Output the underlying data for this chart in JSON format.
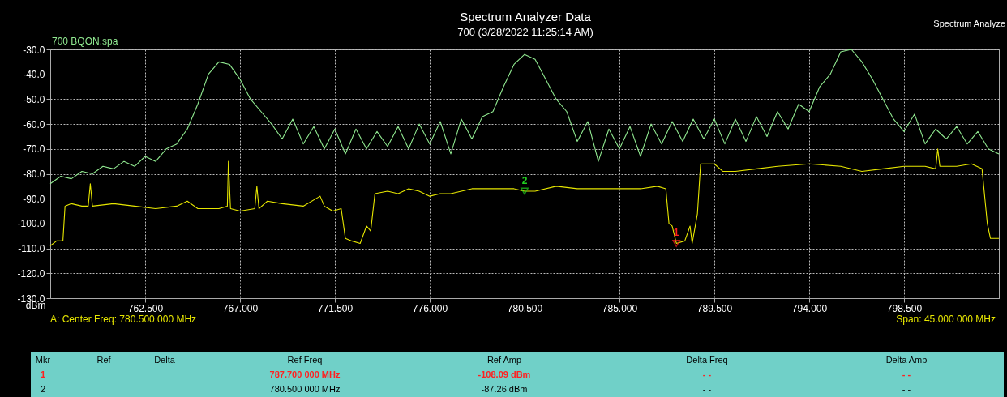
{
  "chart_data": {
    "type": "line",
    "title": "Spectrum Analyzer Data",
    "subtitle": "700 (3/28/2022 11:25:14 AM)",
    "ylabel": "dBm",
    "xlim": [
      758,
      803
    ],
    "ylim": [
      -130,
      -30
    ],
    "xticks": [
      {
        "value": 762.5,
        "label": "762.500"
      },
      {
        "value": 767,
        "label": "767.000"
      },
      {
        "value": 771.5,
        "label": "771.500"
      },
      {
        "value": 776,
        "label": "776.000"
      },
      {
        "value": 780.5,
        "label": "780.500"
      },
      {
        "value": 785,
        "label": "785.000"
      },
      {
        "value": 789.5,
        "label": "789.500"
      },
      {
        "value": 794,
        "label": "794.000"
      },
      {
        "value": 798.5,
        "label": "798.500"
      }
    ],
    "yticks": [
      {
        "value": -30,
        "label": "-30.0"
      },
      {
        "value": -40,
        "label": "-40.0"
      },
      {
        "value": -50,
        "label": "-50.0"
      },
      {
        "value": -60,
        "label": "-60.0"
      },
      {
        "value": -70,
        "label": "-70.0"
      },
      {
        "value": -80,
        "label": "-80.0"
      },
      {
        "value": -90,
        "label": "-90.0"
      },
      {
        "value": -100,
        "label": "-100.0"
      },
      {
        "value": -110,
        "label": "-110.0"
      },
      {
        "value": -120,
        "label": "-120.0"
      },
      {
        "value": -130,
        "label": "-130.0"
      }
    ],
    "grid": true,
    "legend": "top left",
    "line_style": "solid",
    "series": [
      {
        "name": "700 BQON.spa",
        "color": "#90e890",
        "x": [
          758,
          758.5,
          759,
          759.5,
          760,
          760.5,
          761,
          761.5,
          762,
          762.5,
          763,
          763.5,
          764,
          764.5,
          765,
          765.5,
          766,
          766.5,
          767,
          767.5,
          768,
          768.5,
          769,
          769.5,
          770,
          770.5,
          771,
          771.5,
          772,
          772.5,
          773,
          773.5,
          774,
          774.5,
          775,
          775.5,
          776,
          776.5,
          777,
          777.5,
          778,
          778.5,
          779,
          779.5,
          780,
          780.5,
          781,
          781.5,
          782,
          782.5,
          783,
          783.5,
          784,
          784.5,
          785,
          785.5,
          786,
          786.5,
          787,
          787.5,
          788,
          788.5,
          789,
          789.5,
          790,
          790.5,
          791,
          791.5,
          792,
          792.5,
          793,
          793.5,
          794,
          794.5,
          795,
          795.5,
          796,
          796.5,
          797,
          797.5,
          798,
          798.5,
          799,
          799.5,
          800,
          800.5,
          801,
          801.5,
          802,
          802.5,
          803
        ],
        "values": [
          -84,
          -81,
          -82,
          -79,
          -80,
          -77,
          -78,
          -75,
          -77,
          -73,
          -75,
          -70,
          -68,
          -62,
          -52,
          -40,
          -35,
          -36,
          -42,
          -50,
          -55,
          -60,
          -66,
          -58,
          -68,
          -61,
          -70,
          -62,
          -72,
          -62,
          -70,
          -63,
          -69,
          -61,
          -70,
          -60,
          -68,
          -59,
          -72,
          -58,
          -66,
          -57,
          -55,
          -45,
          -36,
          -32,
          -34,
          -42,
          -50,
          -55,
          -67,
          -59,
          -75,
          -62,
          -70,
          -61,
          -73,
          -60,
          -68,
          -59,
          -67,
          -58,
          -66,
          -58,
          -68,
          -58,
          -67,
          -57,
          -65,
          -55,
          -62,
          -52,
          -55,
          -45,
          -40,
          -31,
          -30,
          -35,
          -42,
          -50,
          -58,
          -63,
          -56,
          -68,
          -62,
          -66,
          -61,
          -68,
          -63,
          -70,
          -72
        ]
      },
      {
        "color": "#e6e600",
        "x": [
          758,
          758.3,
          758.6,
          758.7,
          759,
          759.5,
          759.8,
          759.9,
          760,
          761,
          762,
          763,
          764,
          764.5,
          765,
          766,
          766.4,
          766.45,
          766.55,
          767,
          767.7,
          767.8,
          767.9,
          768.3,
          769,
          770,
          770.8,
          771,
          771.4,
          771.8,
          772,
          772.3,
          772.7,
          773,
          773.2,
          773.4,
          774,
          774.5,
          775,
          775.5,
          776,
          776.5,
          777,
          778,
          779,
          780,
          780.5,
          781,
          782,
          783,
          784,
          785,
          786,
          786.8,
          787.2,
          787.35,
          787.5,
          787.7,
          788.1,
          788.35,
          788.45,
          788.7,
          788.85,
          789.5,
          789.9,
          790.5,
          791.5,
          792.5,
          794,
          795.5,
          796.5,
          797.5,
          798.5,
          799.5,
          800,
          800.1,
          800.2,
          801,
          801.7,
          802.2,
          802.45,
          802.6,
          803
        ],
        "values": [
          -109,
          -107,
          -107,
          -93,
          -92,
          -93,
          -93,
          -84,
          -93,
          -92,
          -93,
          -94,
          -93,
          -91,
          -94,
          -94,
          -93,
          -75,
          -94,
          -95,
          -94,
          -85,
          -94,
          -91,
          -92,
          -93,
          -89,
          -93,
          -95,
          -94,
          -106,
          -107,
          -108,
          -101,
          -103,
          -88,
          -87,
          -88,
          -86,
          -87,
          -89,
          -88,
          -88,
          -86,
          -86,
          -86,
          -87,
          -87,
          -85,
          -86,
          -86,
          -86,
          -86,
          -85,
          -86,
          -100,
          -101,
          -108,
          -107,
          -101,
          -108,
          -96,
          -76,
          -76,
          -79,
          -79,
          -78,
          -77,
          -76,
          -77,
          -79,
          -78,
          -77,
          -77,
          -78,
          -70,
          -77,
          -77,
          -76,
          -78,
          -100,
          -106,
          -106
        ]
      },
      {
        "name": "1",
        "color": "#ff2020",
        "type": "scatter",
        "marker": "triangle",
        "x": [
          787.7
        ],
        "values": [
          -108
        ]
      },
      {
        "name": "2",
        "color": "#20d020",
        "type": "scatter",
        "marker": "triangle",
        "x": [
          780.5
        ],
        "values": [
          -87
        ]
      }
    ],
    "annotations": [
      "A: Center Freq: 780.500 000 MHz",
      "Span: 45.000 000 MHz",
      "Spectrum Analyze",
      "Mkr",
      "Ref",
      "Delta",
      "Ref Freq",
      "Ref Amp",
      "Delta Freq",
      "Delta Amp",
      "1",
      "787.700 000 MHz",
      "-108.09 dBm",
      "- -",
      "- -",
      "2",
      "780.500 000 MHz",
      "-87.26 dBm",
      "- -",
      "- -"
    ]
  }
}
